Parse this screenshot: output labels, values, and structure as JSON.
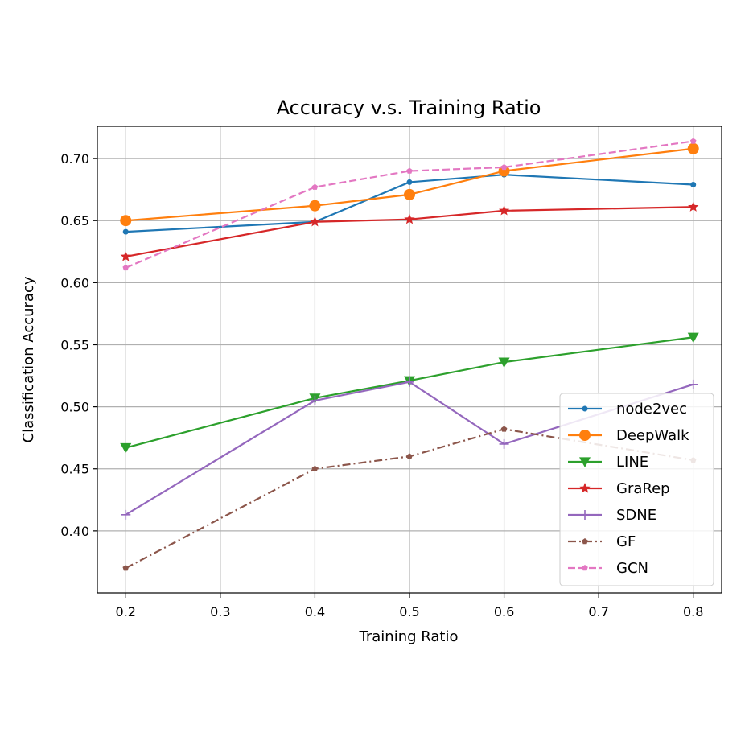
{
  "chart_data": {
    "type": "line",
    "title": "Accuracy v.s. Training Ratio",
    "xlabel": "Training Ratio",
    "ylabel": "Classification Accuracy",
    "xlim": [
      0.17,
      0.83
    ],
    "ylim": [
      0.35,
      0.726
    ],
    "xticks": [
      0.2,
      0.3,
      0.4,
      0.5,
      0.6,
      0.7,
      0.8
    ],
    "xtick_labels": [
      "0.2",
      "0.3",
      "0.4",
      "0.5",
      "0.6",
      "0.7",
      "0.8"
    ],
    "yticks": [
      0.4,
      0.45,
      0.5,
      0.55,
      0.6,
      0.65,
      0.7
    ],
    "ytick_labels": [
      "0.40",
      "0.45",
      "0.50",
      "0.55",
      "0.60",
      "0.65",
      "0.70"
    ],
    "grid": true,
    "legend_position": "lower-right",
    "x": [
      0.2,
      0.4,
      0.5,
      0.6,
      0.8
    ],
    "series": [
      {
        "name": "node2vec",
        "values": [
          0.641,
          0.649,
          0.681,
          0.687,
          0.679
        ],
        "color": "#1f77b4",
        "dash": "solid",
        "marker": "point"
      },
      {
        "name": "DeepWalk",
        "values": [
          0.65,
          0.662,
          0.671,
          0.69,
          0.708
        ],
        "color": "#ff7f0e",
        "dash": "solid",
        "marker": "circle"
      },
      {
        "name": "LINE",
        "values": [
          0.467,
          0.507,
          0.521,
          0.536,
          0.556
        ],
        "color": "#2ca02c",
        "dash": "solid",
        "marker": "triangle-down"
      },
      {
        "name": "GraRep",
        "values": [
          0.621,
          0.649,
          0.651,
          0.658,
          0.661
        ],
        "color": "#d62728",
        "dash": "solid",
        "marker": "star"
      },
      {
        "name": "SDNE",
        "values": [
          0.413,
          0.505,
          0.52,
          0.47,
          0.518
        ],
        "color": "#9467bd",
        "dash": "solid",
        "marker": "plus"
      },
      {
        "name": "GF",
        "values": [
          0.37,
          0.45,
          0.46,
          0.482,
          0.457
        ],
        "color": "#8c564b",
        "dash": "dashdot",
        "marker": "pentagon"
      },
      {
        "name": "GCN",
        "values": [
          0.612,
          0.677,
          0.69,
          0.693,
          0.714
        ],
        "color": "#e377c2",
        "dash": "dashed",
        "marker": "pentagon"
      }
    ]
  }
}
